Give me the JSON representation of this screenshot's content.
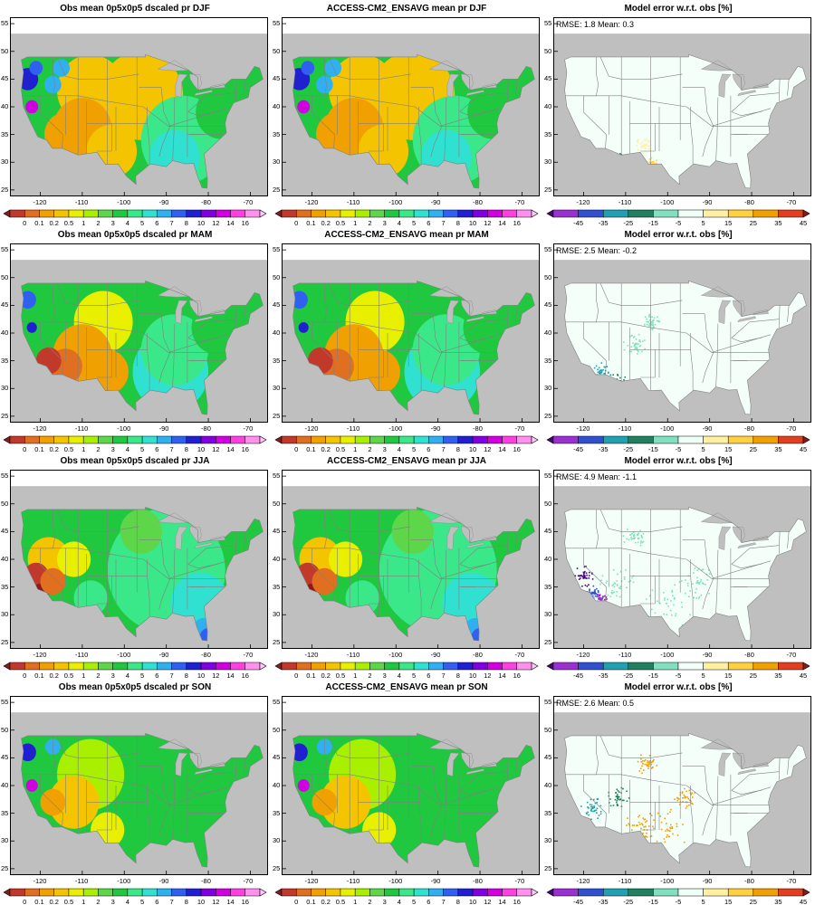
{
  "figure": {
    "panels": [
      {
        "id": "djf-obs",
        "title": "Obs mean 0p5x0p5 dscaled pr DJF",
        "type": "obs",
        "season": "DJF"
      },
      {
        "id": "djf-model",
        "title": "ACCESS-CM2_ENSAVG mean pr DJF",
        "type": "model",
        "season": "DJF"
      },
      {
        "id": "djf-err",
        "title": "Model error w.r.t. obs [%]",
        "type": "error",
        "season": "DJF",
        "rmse_label": "RMSE:",
        "rmse": "1.8",
        "mean_label": "Mean:",
        "mean": "0.3"
      },
      {
        "id": "mam-obs",
        "title": "Obs mean 0p5x0p5 dscaled pr MAM",
        "type": "obs",
        "season": "MAM"
      },
      {
        "id": "mam-model",
        "title": "ACCESS-CM2_ENSAVG mean pr MAM",
        "type": "model",
        "season": "MAM"
      },
      {
        "id": "mam-err",
        "title": "Model error w.r.t. obs [%]",
        "type": "error",
        "season": "MAM",
        "rmse_label": "RMSE:",
        "rmse": "2.5",
        "mean_label": "Mean:",
        "mean": "-0.2"
      },
      {
        "id": "jja-obs",
        "title": "Obs mean 0p5x0p5 dscaled pr JJA",
        "type": "obs",
        "season": "JJA"
      },
      {
        "id": "jja-model",
        "title": "ACCESS-CM2_ENSAVG mean pr JJA",
        "type": "model",
        "season": "JJA"
      },
      {
        "id": "jja-err",
        "title": "Model error w.r.t. obs [%]",
        "type": "error",
        "season": "JJA",
        "rmse_label": "RMSE:",
        "rmse": "4.9",
        "mean_label": "Mean:",
        "mean": "-1.1"
      },
      {
        "id": "son-obs",
        "title": "Obs mean 0p5x0p5 dscaled pr SON",
        "type": "obs",
        "season": "SON"
      },
      {
        "id": "son-model",
        "title": "ACCESS-CM2_ENSAVG mean pr SON",
        "type": "model",
        "season": "SON"
      },
      {
        "id": "son-err",
        "title": "Model error w.r.t. obs [%]",
        "type": "error",
        "season": "SON",
        "rmse_label": "RMSE:",
        "rmse": "2.6",
        "mean_label": "Mean:",
        "mean": "0.5"
      }
    ],
    "lat_ticks": [
      "25",
      "30",
      "35",
      "40",
      "45",
      "50",
      "55"
    ],
    "lon_ticks": [
      "-120",
      "-110",
      "-100",
      "-90",
      "-80",
      "-70"
    ],
    "precip_colorbar": {
      "labels": [
        "0",
        "0.1",
        "0.2",
        "0.5",
        "1",
        "2",
        "3",
        "4",
        "5",
        "6",
        "7",
        "8",
        "10",
        "12",
        "14",
        "16"
      ],
      "colors": [
        "#8b1a1a",
        "#c0392b",
        "#e0701f",
        "#f0a000",
        "#f4c400",
        "#e8f000",
        "#a8f000",
        "#5ed64a",
        "#20c840",
        "#3ae88a",
        "#30e0d0",
        "#30b0f0",
        "#3060f0",
        "#2020d0",
        "#8000e0",
        "#d000e0",
        "#ff40e0",
        "#ff90f0",
        "#ffc8f8"
      ]
    },
    "error_colorbar": {
      "labels": [
        "-45",
        "-35",
        "-25",
        "-15",
        "-5",
        "5",
        "15",
        "25",
        "35",
        "45"
      ],
      "colors": [
        "#4b0082",
        "#9b30d0",
        "#3050d0",
        "#20a0b0",
        "#208060",
        "#80e0c0",
        "#f0fff8",
        "#fff0a0",
        "#ffd040",
        "#f0a000",
        "#e04020",
        "#8b1a1a"
      ]
    },
    "colors": {
      "ocean": "#bfbfbf",
      "border": "#808080",
      "wet": "#30e0d0",
      "mid": "#5ed64a",
      "dry": "#f0a000",
      "error_bg": "#f4fffa"
    }
  }
}
